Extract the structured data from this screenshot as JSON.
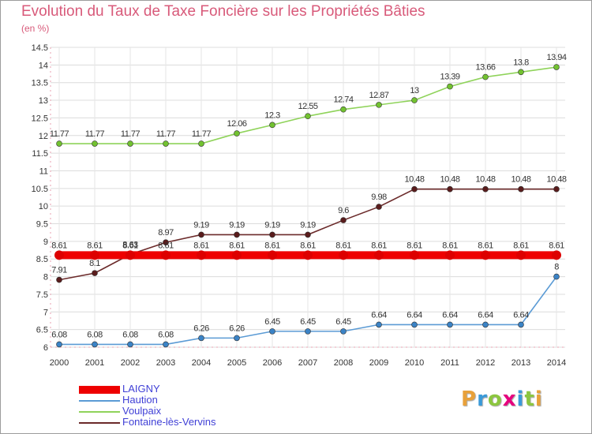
{
  "chart_data": {
    "type": "line",
    "title": "Evolution du Taux de Taxe Foncière sur les Propriétés Bâties",
    "subtitle": "(en %)",
    "x": [
      "2000",
      "2001",
      "2002",
      "2003",
      "2004",
      "2005",
      "2006",
      "2007",
      "2008",
      "2009",
      "2010",
      "2011",
      "2012",
      "2013",
      "2014"
    ],
    "ylim": [
      6,
      14.5
    ],
    "yticks": [
      "6",
      "6.5",
      "7",
      "7.5",
      "8",
      "8.5",
      "9",
      "9.5",
      "10",
      "10.5",
      "11",
      "11.5",
      "12",
      "12.5",
      "13",
      "13.5",
      "14",
      "14.5"
    ],
    "series": [
      {
        "name": "Voulpaix",
        "color": "#8fd35a",
        "dot": "#72c230",
        "values": [
          11.77,
          11.77,
          11.77,
          11.77,
          11.77,
          12.06,
          12.3,
          12.55,
          12.74,
          12.87,
          13,
          13.39,
          13.66,
          13.8,
          13.94
        ],
        "labels": [
          "11.77",
          "11.77",
          "11.77",
          "11.77",
          "11.77",
          "12.06",
          "12.3",
          "12.55",
          "12.74",
          "12.87",
          "13",
          "13.39",
          "13.66",
          "13.8",
          "13.94"
        ]
      },
      {
        "name": "Fontaine-lès-Vervins",
        "color": "#6b2a2a",
        "dot": "#5a1c1c",
        "values": [
          7.91,
          8.1,
          8.63,
          8.97,
          9.19,
          9.19,
          9.19,
          9.19,
          9.6,
          9.98,
          10.48,
          10.48,
          10.48,
          10.48,
          10.48
        ],
        "labels": [
          "7.91",
          "8.1",
          "8.63",
          "8.97",
          "9.19",
          "9.19",
          "9.19",
          "9.19",
          "9.6",
          "9.98",
          "10.48",
          "10.48",
          "10.48",
          "10.48",
          "10.48"
        ]
      },
      {
        "name": "Haution",
        "color": "#5b9bd5",
        "dot": "#3b83c6",
        "values": [
          6.08,
          6.08,
          6.08,
          6.08,
          6.26,
          6.26,
          6.45,
          6.45,
          6.45,
          6.64,
          6.64,
          6.64,
          6.64,
          6.64,
          8
        ],
        "labels": [
          "6.08",
          "6.08",
          "6.08",
          "6.08",
          "6.26",
          "6.26",
          "6.45",
          "6.45",
          "6.45",
          "6.64",
          "6.64",
          "6.64",
          "6.64",
          "6.64",
          "8"
        ]
      },
      {
        "name": "LAIGNY",
        "color": "#ee0000",
        "dot": "#dd0000",
        "values": [
          8.61,
          8.61,
          8.61,
          8.61,
          8.61,
          8.61,
          8.61,
          8.61,
          8.61,
          8.61,
          8.61,
          8.61,
          8.61,
          8.61,
          8.61
        ],
        "labels": [
          "8.61",
          "8.61",
          "8.61",
          "8.61",
          "8.61",
          "8.61",
          "8.61",
          "8.61",
          "8.61",
          "8.61",
          "8.61",
          "8.61",
          "8.61",
          "8.61",
          "8.61"
        ]
      }
    ],
    "legend": [
      "LAIGNY",
      "Haution",
      "Voulpaix",
      "Fontaine-lès-Vervins"
    ]
  },
  "brand": {
    "letters": [
      "P",
      "r",
      "o",
      "x",
      "i",
      "t",
      "i"
    ],
    "colors": [
      "#e8a13a",
      "#3a9ad9",
      "#8cc63f",
      "#e6007e",
      "#3a9ad9",
      "#8cc63f",
      "#e8a13a"
    ]
  }
}
